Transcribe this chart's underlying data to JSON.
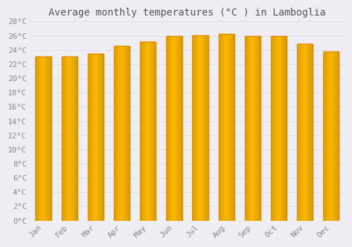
{
  "months": [
    "Jan",
    "Feb",
    "Mar",
    "Apr",
    "May",
    "Jun",
    "Jul",
    "Aug",
    "Sep",
    "Oct",
    "Nov",
    "Dec"
  ],
  "values": [
    23.1,
    23.1,
    23.5,
    24.6,
    25.2,
    26.0,
    26.1,
    26.3,
    26.0,
    26.0,
    24.9,
    23.8
  ],
  "bar_color_face": "#FFBB00",
  "bar_color_edge": "#E08800",
  "title": "Average monthly temperatures (°C ) in Lamboglia",
  "ylim": [
    0,
    28
  ],
  "ytick_step": 2,
  "background_color": "#F0EEF5",
  "plot_bg_color": "#F0EEF5",
  "grid_color": "#dddde8",
  "title_fontsize": 10,
  "tick_fontsize": 8,
  "title_color": "#555555",
  "tick_color": "#888888"
}
